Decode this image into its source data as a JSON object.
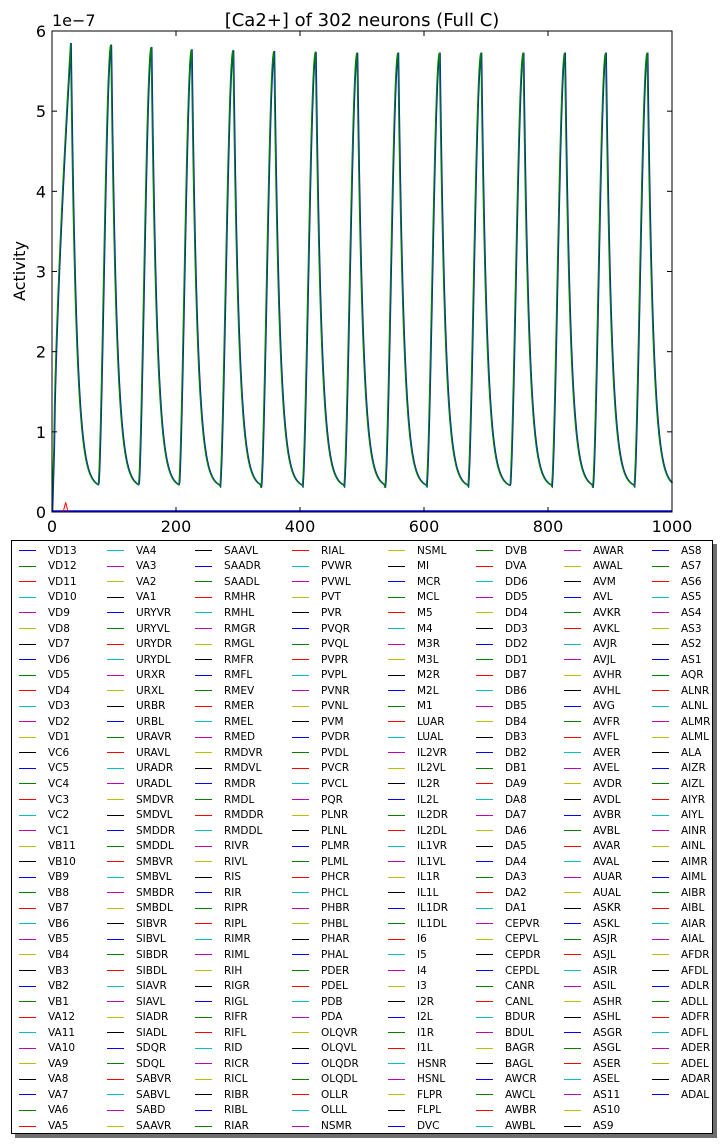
{
  "chart_data": {
    "type": "line",
    "title": "[Ca2+] of 302 neurons (Full C)",
    "xlabel": "",
    "ylabel": "Activity",
    "y_offset_label": "1e−7",
    "xlim": [
      0,
      1000
    ],
    "ylim": [
      0,
      6e-07
    ],
    "x_ticks": [
      0,
      200,
      400,
      600,
      800,
      1000
    ],
    "x_tick_labels": [
      "0",
      "200",
      "400",
      "600",
      "800",
      "1000"
    ],
    "y_ticks": [
      0,
      1e-07,
      2e-07,
      3e-07,
      4e-07,
      5e-07,
      6e-07
    ],
    "y_tick_labels": [
      "0",
      "1",
      "2",
      "3",
      "4",
      "5",
      "6"
    ],
    "grid": false,
    "legend_position": "below",
    "oscillation": {
      "peak_times": [
        30,
        95,
        160,
        225,
        292,
        358,
        425,
        492,
        558,
        625,
        692,
        760,
        827,
        893,
        960
      ],
      "peak_values": [
        5.85e-07,
        5.83e-07,
        5.8e-07,
        5.77e-07,
        5.76e-07,
        5.75e-07,
        5.74e-07,
        5.73e-07,
        5.73e-07,
        5.73e-07,
        5.73e-07,
        5.73e-07,
        5.73e-07,
        5.73e-07,
        5.73e-07
      ],
      "trough_value": 3e-08
    },
    "series_colors": [
      "#0000ff",
      "#008000",
      "#ff0000",
      "#00bfbf",
      "#bf00bf",
      "#bfbf00",
      "#000000"
    ],
    "series": [
      {
        "name": "VD13"
      },
      {
        "name": "VD12"
      },
      {
        "name": "VD11"
      },
      {
        "name": "VD10"
      },
      {
        "name": "VD9"
      },
      {
        "name": "VD8"
      },
      {
        "name": "VD7"
      },
      {
        "name": "VD6"
      },
      {
        "name": "VD5"
      },
      {
        "name": "VD4"
      },
      {
        "name": "VD3"
      },
      {
        "name": "VD2"
      },
      {
        "name": "VD1"
      },
      {
        "name": "VC6"
      },
      {
        "name": "VC5"
      },
      {
        "name": "VC4"
      },
      {
        "name": "VC3"
      },
      {
        "name": "VC2"
      },
      {
        "name": "VC1"
      },
      {
        "name": "VB11"
      },
      {
        "name": "VB10"
      },
      {
        "name": "VB9"
      },
      {
        "name": "VB8"
      },
      {
        "name": "VB7"
      },
      {
        "name": "VB6"
      },
      {
        "name": "VB5"
      },
      {
        "name": "VB4"
      },
      {
        "name": "VB3"
      },
      {
        "name": "VB2"
      },
      {
        "name": "VB1"
      },
      {
        "name": "VA12"
      },
      {
        "name": "VA11"
      },
      {
        "name": "VA10"
      },
      {
        "name": "VA9"
      },
      {
        "name": "VA8"
      },
      {
        "name": "VA7"
      },
      {
        "name": "VA6"
      },
      {
        "name": "VA5"
      },
      {
        "name": "VA4"
      },
      {
        "name": "VA3"
      },
      {
        "name": "VA2"
      },
      {
        "name": "VA1"
      },
      {
        "name": "URYVR"
      },
      {
        "name": "URYVL"
      },
      {
        "name": "URYDR"
      },
      {
        "name": "URYDL"
      },
      {
        "name": "URXR"
      },
      {
        "name": "URXL"
      },
      {
        "name": "URBR"
      },
      {
        "name": "URBL"
      },
      {
        "name": "URAVR"
      },
      {
        "name": "URAVL"
      },
      {
        "name": "URADR"
      },
      {
        "name": "URADL"
      },
      {
        "name": "SMDVR"
      },
      {
        "name": "SMDVL"
      },
      {
        "name": "SMDDR"
      },
      {
        "name": "SMDDL"
      },
      {
        "name": "SMBVR"
      },
      {
        "name": "SMBVL"
      },
      {
        "name": "SMBDR"
      },
      {
        "name": "SMBDL"
      },
      {
        "name": "SIBVR"
      },
      {
        "name": "SIBVL"
      },
      {
        "name": "SIBDR"
      },
      {
        "name": "SIBDL"
      },
      {
        "name": "SIAVR"
      },
      {
        "name": "SIAVL"
      },
      {
        "name": "SIADR"
      },
      {
        "name": "SIADL"
      },
      {
        "name": "SDQR"
      },
      {
        "name": "SDQL"
      },
      {
        "name": "SABVR"
      },
      {
        "name": "SABVL"
      },
      {
        "name": "SABD"
      },
      {
        "name": "SAAVR"
      },
      {
        "name": "SAAVL"
      },
      {
        "name": "SAADR"
      },
      {
        "name": "SAADL"
      },
      {
        "name": "RMHR"
      },
      {
        "name": "RMHL"
      },
      {
        "name": "RMGR"
      },
      {
        "name": "RMGL"
      },
      {
        "name": "RMFR"
      },
      {
        "name": "RMFL"
      },
      {
        "name": "RMEV"
      },
      {
        "name": "RMER"
      },
      {
        "name": "RMEL"
      },
      {
        "name": "RMED"
      },
      {
        "name": "RMDVR"
      },
      {
        "name": "RMDVL"
      },
      {
        "name": "RMDR"
      },
      {
        "name": "RMDL"
      },
      {
        "name": "RMDDR"
      },
      {
        "name": "RMDDL"
      },
      {
        "name": "RIVR"
      },
      {
        "name": "RIVL"
      },
      {
        "name": "RIS"
      },
      {
        "name": "RIR"
      },
      {
        "name": "RIPR"
      },
      {
        "name": "RIPL"
      },
      {
        "name": "RIMR"
      },
      {
        "name": "RIML"
      },
      {
        "name": "RIH"
      },
      {
        "name": "RIGR"
      },
      {
        "name": "RIGL"
      },
      {
        "name": "RIFR"
      },
      {
        "name": "RIFL"
      },
      {
        "name": "RID"
      },
      {
        "name": "RICR"
      },
      {
        "name": "RICL"
      },
      {
        "name": "RIBR"
      },
      {
        "name": "RIBL"
      },
      {
        "name": "RIAR"
      },
      {
        "name": "RIAL"
      },
      {
        "name": "PVWR"
      },
      {
        "name": "PVWL"
      },
      {
        "name": "PVT"
      },
      {
        "name": "PVR"
      },
      {
        "name": "PVQR"
      },
      {
        "name": "PVQL"
      },
      {
        "name": "PVPR"
      },
      {
        "name": "PVPL"
      },
      {
        "name": "PVNR"
      },
      {
        "name": "PVNL"
      },
      {
        "name": "PVM"
      },
      {
        "name": "PVDR"
      },
      {
        "name": "PVDL"
      },
      {
        "name": "PVCR"
      },
      {
        "name": "PVCL"
      },
      {
        "name": "PQR"
      },
      {
        "name": "PLNR"
      },
      {
        "name": "PLNL"
      },
      {
        "name": "PLMR"
      },
      {
        "name": "PLML"
      },
      {
        "name": "PHCR"
      },
      {
        "name": "PHCL"
      },
      {
        "name": "PHBR"
      },
      {
        "name": "PHBL"
      },
      {
        "name": "PHAR"
      },
      {
        "name": "PHAL"
      },
      {
        "name": "PDER"
      },
      {
        "name": "PDEL"
      },
      {
        "name": "PDB"
      },
      {
        "name": "PDA"
      },
      {
        "name": "OLQVR"
      },
      {
        "name": "OLQVL"
      },
      {
        "name": "OLQDR"
      },
      {
        "name": "OLQDL"
      },
      {
        "name": "OLLR"
      },
      {
        "name": "OLLL"
      },
      {
        "name": "NSMR"
      },
      {
        "name": "NSML"
      },
      {
        "name": "MI"
      },
      {
        "name": "MCR"
      },
      {
        "name": "MCL"
      },
      {
        "name": "M5"
      },
      {
        "name": "M4"
      },
      {
        "name": "M3R"
      },
      {
        "name": "M3L"
      },
      {
        "name": "M2R"
      },
      {
        "name": "M2L"
      },
      {
        "name": "M1"
      },
      {
        "name": "LUAR"
      },
      {
        "name": "LUAL"
      },
      {
        "name": "IL2VR"
      },
      {
        "name": "IL2VL"
      },
      {
        "name": "IL2R"
      },
      {
        "name": "IL2L"
      },
      {
        "name": "IL2DR"
      },
      {
        "name": "IL2DL"
      },
      {
        "name": "IL1VR"
      },
      {
        "name": "IL1VL"
      },
      {
        "name": "IL1R"
      },
      {
        "name": "IL1L"
      },
      {
        "name": "IL1DR"
      },
      {
        "name": "IL1DL"
      },
      {
        "name": "I6"
      },
      {
        "name": "I5"
      },
      {
        "name": "I4"
      },
      {
        "name": "I3"
      },
      {
        "name": "I2R"
      },
      {
        "name": "I2L"
      },
      {
        "name": "I1R"
      },
      {
        "name": "I1L"
      },
      {
        "name": "HSNR"
      },
      {
        "name": "HSNL"
      },
      {
        "name": "FLPR"
      },
      {
        "name": "FLPL"
      },
      {
        "name": "DVC"
      },
      {
        "name": "DVB"
      },
      {
        "name": "DVA"
      },
      {
        "name": "DD6"
      },
      {
        "name": "DD5"
      },
      {
        "name": "DD4"
      },
      {
        "name": "DD3"
      },
      {
        "name": "DD2"
      },
      {
        "name": "DD1"
      },
      {
        "name": "DB7"
      },
      {
        "name": "DB6"
      },
      {
        "name": "DB5"
      },
      {
        "name": "DB4"
      },
      {
        "name": "DB3"
      },
      {
        "name": "DB2"
      },
      {
        "name": "DB1"
      },
      {
        "name": "DA9"
      },
      {
        "name": "DA8"
      },
      {
        "name": "DA7"
      },
      {
        "name": "DA6"
      },
      {
        "name": "DA5"
      },
      {
        "name": "DA4"
      },
      {
        "name": "DA3"
      },
      {
        "name": "DA2"
      },
      {
        "name": "DA1"
      },
      {
        "name": "CEPVR"
      },
      {
        "name": "CEPVL"
      },
      {
        "name": "CEPDR"
      },
      {
        "name": "CEPDL"
      },
      {
        "name": "CANR"
      },
      {
        "name": "CANL"
      },
      {
        "name": "BDUR"
      },
      {
        "name": "BDUL"
      },
      {
        "name": "BAGR"
      },
      {
        "name": "BAGL"
      },
      {
        "name": "AWCR"
      },
      {
        "name": "AWCL"
      },
      {
        "name": "AWBR"
      },
      {
        "name": "AWBL"
      },
      {
        "name": "AWAR"
      },
      {
        "name": "AWAL"
      },
      {
        "name": "AVM"
      },
      {
        "name": "AVL"
      },
      {
        "name": "AVKR"
      },
      {
        "name": "AVKL"
      },
      {
        "name": "AVJR"
      },
      {
        "name": "AVJL"
      },
      {
        "name": "AVHR"
      },
      {
        "name": "AVHL"
      },
      {
        "name": "AVG"
      },
      {
        "name": "AVFR"
      },
      {
        "name": "AVFL"
      },
      {
        "name": "AVER"
      },
      {
        "name": "AVEL"
      },
      {
        "name": "AVDR"
      },
      {
        "name": "AVDL"
      },
      {
        "name": "AVBR"
      },
      {
        "name": "AVBL"
      },
      {
        "name": "AVAR"
      },
      {
        "name": "AVAL"
      },
      {
        "name": "AUAR"
      },
      {
        "name": "AUAL"
      },
      {
        "name": "ASKR"
      },
      {
        "name": "ASKL"
      },
      {
        "name": "ASJR"
      },
      {
        "name": "ASJL"
      },
      {
        "name": "ASIR"
      },
      {
        "name": "ASIL"
      },
      {
        "name": "ASHR"
      },
      {
        "name": "ASHL"
      },
      {
        "name": "ASGR"
      },
      {
        "name": "ASGL"
      },
      {
        "name": "ASER"
      },
      {
        "name": "ASEL"
      },
      {
        "name": "AS11"
      },
      {
        "name": "AS10"
      },
      {
        "name": "AS9"
      },
      {
        "name": "AS8"
      },
      {
        "name": "AS7"
      },
      {
        "name": "AS6"
      },
      {
        "name": "AS5"
      },
      {
        "name": "AS4"
      },
      {
        "name": "AS3"
      },
      {
        "name": "AS2"
      },
      {
        "name": "AS1"
      },
      {
        "name": "AQR"
      },
      {
        "name": "ALNR"
      },
      {
        "name": "ALNL"
      },
      {
        "name": "ALMR"
      },
      {
        "name": "ALML"
      },
      {
        "name": "ALA"
      },
      {
        "name": "AIZR"
      },
      {
        "name": "AIZL"
      },
      {
        "name": "AIYR"
      },
      {
        "name": "AIYL"
      },
      {
        "name": "AINR"
      },
      {
        "name": "AINL"
      },
      {
        "name": "AIMR"
      },
      {
        "name": "AIML"
      },
      {
        "name": "AIBR"
      },
      {
        "name": "AIBL"
      },
      {
        "name": "AIAR"
      },
      {
        "name": "AIAL"
      },
      {
        "name": "AFDR"
      },
      {
        "name": "AFDL"
      },
      {
        "name": "ADLR"
      },
      {
        "name": "ADLL"
      },
      {
        "name": "ADFR"
      },
      {
        "name": "ADFL"
      },
      {
        "name": "ADER"
      },
      {
        "name": "ADEL"
      },
      {
        "name": "ADAR"
      },
      {
        "name": "ADAL"
      }
    ]
  }
}
